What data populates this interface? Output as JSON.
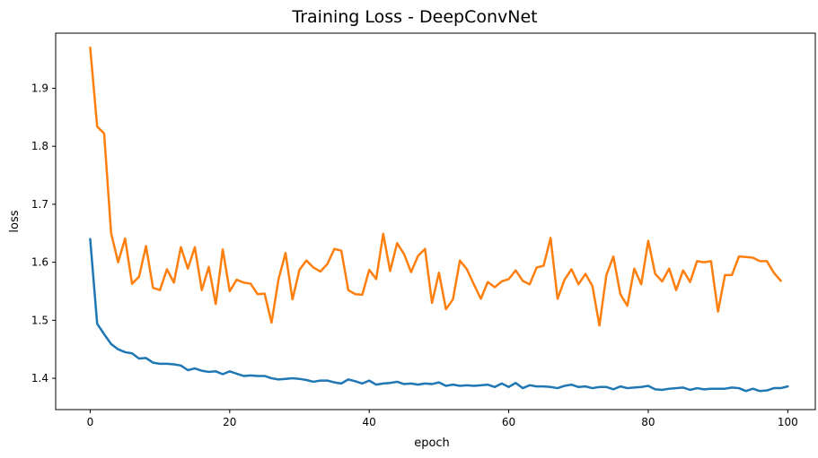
{
  "chart_data": {
    "type": "line",
    "title": "Training Loss - DeepConvNet",
    "xlabel": "epoch",
    "ylabel": "loss",
    "xlim": [
      -4.95,
      103.95
    ],
    "ylim": [
      1.346,
      1.995
    ],
    "xticks": [
      0,
      20,
      40,
      60,
      80,
      100
    ],
    "yticks": [
      1.4,
      1.5,
      1.6,
      1.7,
      1.8,
      1.9
    ],
    "x_start": 0,
    "grid": false,
    "legend": false,
    "series": [
      {
        "color": "#1f77b4",
        "values": [
          1.64,
          1.494,
          1.476,
          1.459,
          1.45,
          1.445,
          1.443,
          1.434,
          1.435,
          1.427,
          1.425,
          1.425,
          1.424,
          1.422,
          1.414,
          1.417,
          1.413,
          1.411,
          1.412,
          1.407,
          1.412,
          1.408,
          1.404,
          1.405,
          1.404,
          1.404,
          1.4,
          1.398,
          1.399,
          1.4,
          1.399,
          1.397,
          1.394,
          1.396,
          1.396,
          1.393,
          1.391,
          1.398,
          1.395,
          1.391,
          1.396,
          1.389,
          1.391,
          1.392,
          1.394,
          1.39,
          1.391,
          1.389,
          1.391,
          1.39,
          1.393,
          1.387,
          1.389,
          1.387,
          1.388,
          1.387,
          1.388,
          1.389,
          1.385,
          1.391,
          1.385,
          1.392,
          1.383,
          1.388,
          1.386,
          1.386,
          1.385,
          1.383,
          1.387,
          1.389,
          1.385,
          1.386,
          1.383,
          1.385,
          1.385,
          1.381,
          1.386,
          1.383,
          1.384,
          1.385,
          1.387,
          1.381,
          1.38,
          1.382,
          1.383,
          1.384,
          1.38,
          1.383,
          1.381,
          1.382,
          1.382,
          1.382,
          1.384,
          1.383,
          1.378,
          1.382,
          1.378,
          1.379,
          1.383,
          1.383,
          1.386
        ]
      },
      {
        "color": "#ff7f0e",
        "values": [
          1.97,
          1.834,
          1.822,
          1.65,
          1.6,
          1.641,
          1.563,
          1.575,
          1.628,
          1.556,
          1.552,
          1.588,
          1.565,
          1.626,
          1.589,
          1.626,
          1.552,
          1.592,
          1.528,
          1.622,
          1.55,
          1.57,
          1.565,
          1.563,
          1.545,
          1.546,
          1.496,
          1.571,
          1.616,
          1.536,
          1.587,
          1.603,
          1.591,
          1.584,
          1.597,
          1.623,
          1.62,
          1.552,
          1.545,
          1.544,
          1.587,
          1.571,
          1.649,
          1.585,
          1.633,
          1.614,
          1.583,
          1.611,
          1.623,
          1.53,
          1.582,
          1.519,
          1.536,
          1.603,
          1.588,
          1.562,
          1.537,
          1.566,
          1.557,
          1.567,
          1.571,
          1.586,
          1.568,
          1.562,
          1.591,
          1.594,
          1.642,
          1.537,
          1.57,
          1.588,
          1.562,
          1.58,
          1.559,
          1.491,
          1.578,
          1.61,
          1.545,
          1.525,
          1.589,
          1.562,
          1.637,
          1.58,
          1.567,
          1.589,
          1.552,
          1.586,
          1.566,
          1.602,
          1.6,
          1.602,
          1.515,
          1.578,
          1.578,
          1.61,
          1.609,
          1.608,
          1.602,
          1.602,
          1.582,
          1.568
        ]
      }
    ]
  }
}
